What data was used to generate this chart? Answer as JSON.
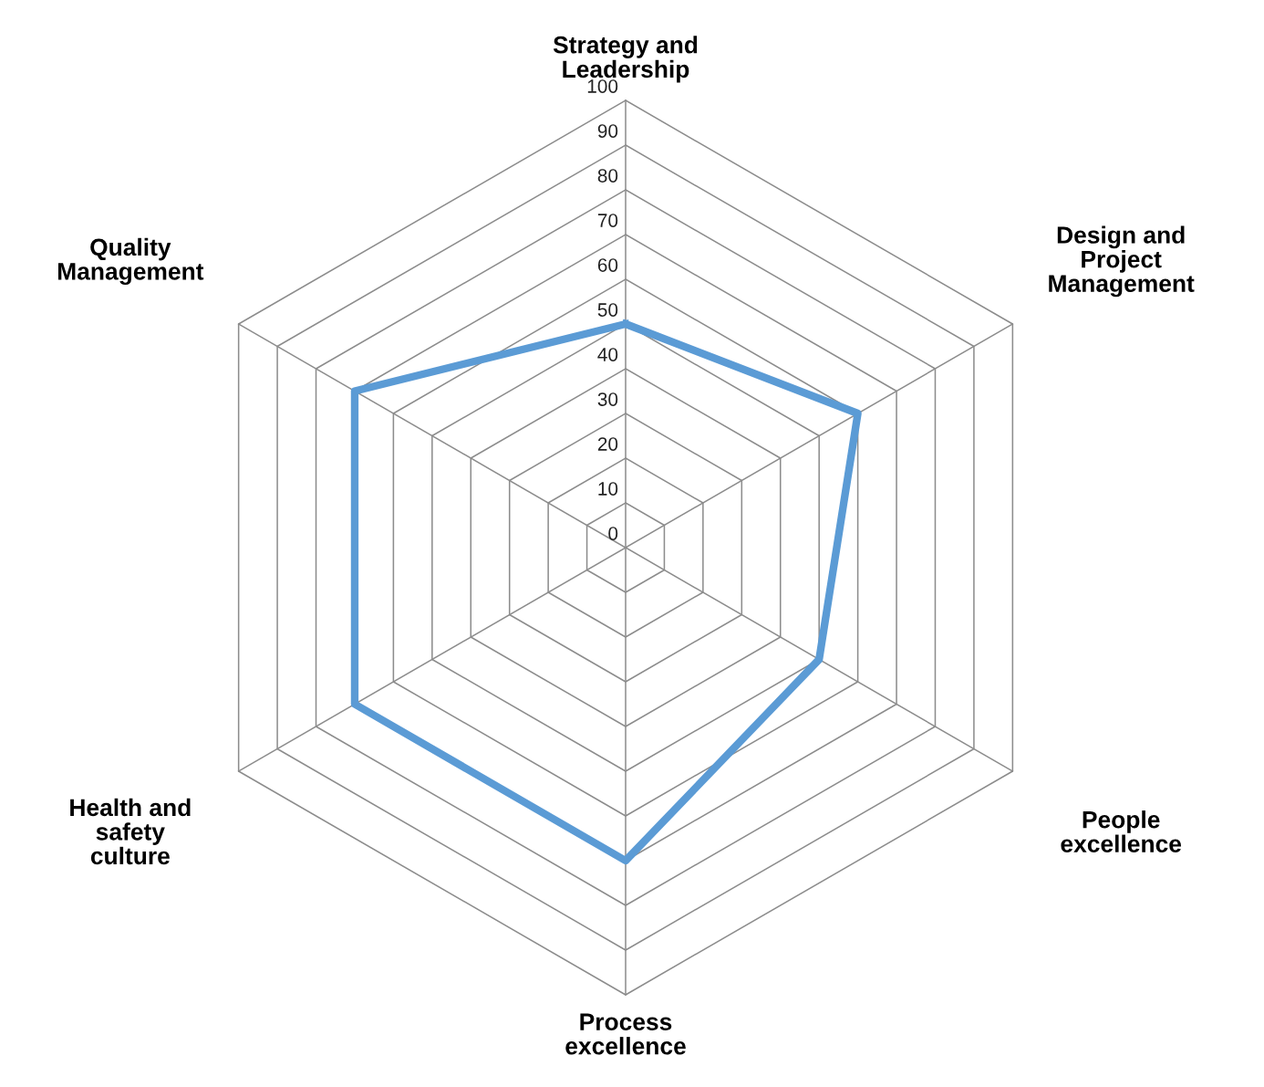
{
  "chart_data": {
    "type": "radar",
    "categories": [
      "Strategy and\nLeadership",
      "Design and\nProject\nManagement",
      "People\nexcellence",
      "Process\nexcellence",
      "Health and\nsafety\nculture",
      "Quality\nManagement"
    ],
    "series": [
      {
        "color": "#5b9bd5",
        "values": [
          50,
          60,
          50,
          70,
          70,
          70
        ]
      }
    ],
    "ylim": [
      0,
      100
    ],
    "yticks": [
      0,
      10,
      20,
      30,
      40,
      50,
      60,
      70,
      80,
      90,
      100
    ],
    "grid": true
  }
}
